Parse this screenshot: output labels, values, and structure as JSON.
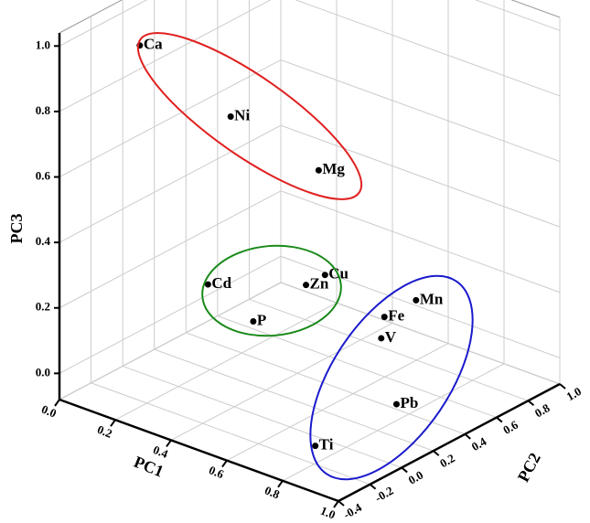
{
  "chart_data": {
    "type": "scatter3d",
    "xlabel": "PC1",
    "ylabel": "PC2",
    "zlabel": "PC3",
    "xlim": [
      0,
      1
    ],
    "ylim": [
      -0.4,
      1.0
    ],
    "zlim": [
      -0.08,
      1.04
    ],
    "xticks": [
      {
        "value": 0,
        "label": "0.0"
      },
      0.2,
      0.4,
      0.6,
      0.8,
      {
        "value": 1,
        "label": "1.0"
      }
    ],
    "yticks": [
      -0.4,
      -0.2,
      {
        "value": 0,
        "label": "0.0"
      },
      0.2,
      0.4,
      0.6,
      0.8,
      {
        "value": 1,
        "label": "1.0"
      }
    ],
    "zticks": [
      {
        "value": 0,
        "label": "0.0"
      },
      0.2,
      0.4,
      0.6,
      0.8,
      {
        "value": 1,
        "label": "1.0"
      }
    ],
    "grid": true,
    "color": "#000000",
    "points": [
      {
        "label": "Ca",
        "x": 0.05,
        "y": 0.02,
        "z": 0.91
      },
      {
        "label": "Ni",
        "x": 0.2,
        "y": 0.33,
        "z": 0.66
      },
      {
        "label": "Mg",
        "x": 0.3,
        "y": 0.71,
        "z": 0.43
      },
      {
        "label": "Cd",
        "x": 0.3,
        "y": 0.01,
        "z": 0.26
      },
      {
        "label": "P",
        "x": 0.4,
        "y": 0.12,
        "z": 0.15
      },
      {
        "label": "Zn",
        "x": 0.3,
        "y": 0.63,
        "z": 0.1
      },
      {
        "label": "Cu",
        "x": 0.3,
        "y": 0.75,
        "z": 0.1
      },
      {
        "label": "Mn",
        "x": 0.7,
        "y": 0.62,
        "z": 0.18
      },
      {
        "label": "Fe",
        "x": 0.7,
        "y": 0.42,
        "z": 0.18
      },
      {
        "label": "V",
        "x": 0.7,
        "y": 0.4,
        "z": 0.12
      },
      {
        "label": "Pb",
        "x": 0.8,
        "y": 0.32,
        "z": -0.03
      },
      {
        "label": "Ti",
        "x": 0.9,
        "y": -0.37,
        "z": 0.05
      }
    ]
  }
}
